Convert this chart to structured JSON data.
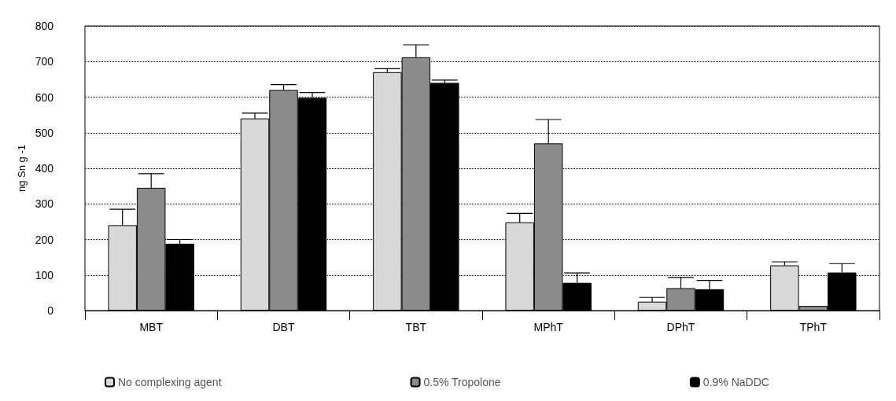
{
  "chart_data": {
    "type": "bar",
    "ylabel": "ng Sn g -1",
    "categories": [
      "MBT",
      "DBT",
      "TBT",
      "MPhT",
      "DPhT",
      "TPhT"
    ],
    "series": [
      {
        "name": "No complexing agent",
        "color": "#d9d9d9",
        "values": [
          240,
          540,
          670,
          248,
          25,
          127
        ],
        "errors": [
          [
            240,
            285
          ],
          [
            540,
            555
          ],
          [
            670,
            680
          ],
          [
            248,
            273
          ],
          [
            25,
            37
          ],
          [
            127,
            137
          ]
        ]
      },
      {
        "name": "0.5% Tropolone",
        "color": "#8c8c8c",
        "values": [
          345,
          620,
          712,
          470,
          63,
          13
        ],
        "errors": [
          [
            345,
            385
          ],
          [
            620,
            635
          ],
          [
            712,
            747
          ],
          [
            470,
            537
          ],
          [
            63,
            93
          ],
          null
        ]
      },
      {
        "name": "0.9% NaDDC",
        "color": "#000000",
        "values": [
          188,
          598,
          640,
          78,
          60,
          107
        ],
        "errors": [
          [
            188,
            200
          ],
          [
            598,
            613
          ],
          [
            640,
            648
          ],
          [
            78,
            106
          ],
          [
            60,
            85
          ],
          [
            107,
            132
          ]
        ]
      }
    ],
    "ylim": [
      0,
      800
    ],
    "yticks": [
      0,
      100,
      200,
      300,
      400,
      500,
      600,
      700,
      800
    ],
    "grid": "y",
    "legend": "bottom"
  }
}
